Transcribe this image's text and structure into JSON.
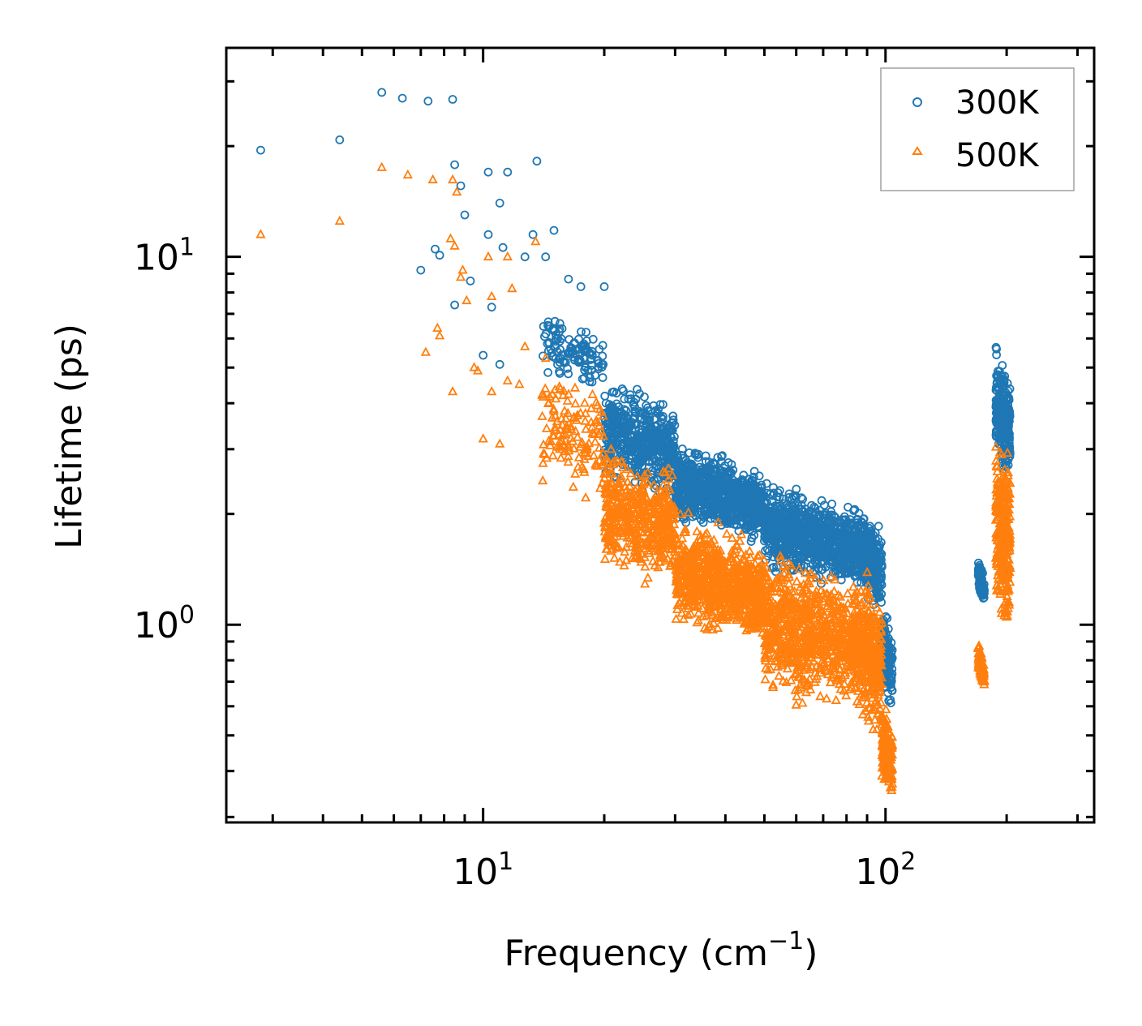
{
  "chart_data": {
    "type": "scatter",
    "title": "",
    "xlabel_main": "Frequency (cm",
    "xlabel_sup": "−1",
    "xlabel_close": ")",
    "ylabel": "Lifetime (ps)",
    "xscale": "log",
    "yscale": "log",
    "xlim": [
      2.3,
      330
    ],
    "ylim": [
      0.29,
      37
    ],
    "x_tick_labels": [
      {
        "value": 10,
        "base": "10",
        "exp": "1"
      },
      {
        "value": 100,
        "base": "10",
        "exp": "2"
      }
    ],
    "y_tick_labels": [
      {
        "value": 1,
        "base": "10",
        "exp": "0"
      },
      {
        "value": 10,
        "base": "10",
        "exp": "1"
      }
    ],
    "grid": false,
    "legend_position": "top-right",
    "series": [
      {
        "name": "300K",
        "marker": "circle",
        "color": "#1f77b4",
        "sample_points": [
          [
            2.8,
            19.5
          ],
          [
            5.6,
            28
          ],
          [
            6.3,
            27
          ],
          [
            7.3,
            26.5
          ],
          [
            8.4,
            26.8
          ],
          [
            4.4,
            20.8
          ],
          [
            13.6,
            18.2
          ],
          [
            8.5,
            17.8
          ],
          [
            10.3,
            17
          ],
          [
            11.5,
            17
          ],
          [
            8.8,
            15.6
          ],
          [
            9.0,
            13
          ],
          [
            11.0,
            14
          ],
          [
            13.3,
            11.5
          ],
          [
            15.0,
            11.8
          ],
          [
            10.3,
            11.5
          ],
          [
            11.2,
            10.6
          ],
          [
            7.6,
            10.5
          ],
          [
            7.8,
            10.1
          ],
          [
            7.0,
            9.2
          ],
          [
            9.3,
            8.6
          ],
          [
            10.5,
            7.3
          ],
          [
            12.7,
            10
          ],
          [
            14.3,
            10
          ],
          [
            16.3,
            8.7
          ],
          [
            17.5,
            8.3
          ],
          [
            20.0,
            8.3
          ],
          [
            10.0,
            5.4
          ],
          [
            11.0,
            5.1
          ],
          [
            8.5,
            7.4
          ]
        ],
        "clusters": [
          {
            "x_from": 14,
            "x_to": 20,
            "y_top": 7.5,
            "y_bottom": 4.2,
            "count": 120
          },
          {
            "x_from": 20,
            "x_to": 30,
            "y_top": 5.0,
            "y_bottom": 2.1,
            "count": 500
          },
          {
            "x_from": 30,
            "x_to": 50,
            "y_top": 3.3,
            "y_bottom": 1.6,
            "count": 800
          },
          {
            "x_from": 50,
            "x_to": 85,
            "y_top": 2.6,
            "y_bottom": 1.2,
            "count": 800
          },
          {
            "x_from": 85,
            "x_to": 98,
            "y_top": 2.3,
            "y_bottom": 1.05,
            "count": 300
          },
          {
            "x_from": 98,
            "x_to": 104,
            "y_top": 1.2,
            "y_bottom": 0.55,
            "count": 150
          },
          {
            "x_from": 170,
            "x_to": 176,
            "y_top": 1.6,
            "y_bottom": 1.1,
            "count": 90
          },
          {
            "x_from": 188,
            "x_to": 204,
            "y_top": 6.0,
            "y_bottom": 2.4,
            "count": 280
          }
        ]
      },
      {
        "name": "500K",
        "marker": "triangle",
        "color": "#ff7f0e",
        "sample_points": [
          [
            2.8,
            11.5
          ],
          [
            4.4,
            12.5
          ],
          [
            5.6,
            17.5
          ],
          [
            6.5,
            16.7
          ],
          [
            7.5,
            16.2
          ],
          [
            8.4,
            16.2
          ],
          [
            8.6,
            15
          ],
          [
            8.3,
            11.2
          ],
          [
            8.5,
            10.7
          ],
          [
            10.3,
            10
          ],
          [
            11.5,
            10
          ],
          [
            13.5,
            11
          ],
          [
            8.9,
            9.2
          ],
          [
            8.8,
            8.8
          ],
          [
            9.1,
            7.6
          ],
          [
            10.5,
            7.8
          ],
          [
            11.8,
            8.2
          ],
          [
            7.7,
            6.4
          ],
          [
            7.8,
            6.1
          ],
          [
            7.2,
            5.5
          ],
          [
            8.4,
            4.3
          ],
          [
            9.5,
            5.0
          ],
          [
            10.5,
            4.3
          ],
          [
            11.5,
            4.6
          ],
          [
            12.3,
            4.5
          ],
          [
            10.0,
            3.2
          ],
          [
            11.0,
            3.1
          ],
          [
            12.7,
            5.7
          ],
          [
            14.3,
            5.3
          ],
          [
            9.7,
            4.9
          ]
        ],
        "clusters": [
          {
            "x_from": 14,
            "x_to": 20,
            "y_top": 5.4,
            "y_bottom": 2.1,
            "count": 140
          },
          {
            "x_from": 20,
            "x_to": 30,
            "y_top": 3.3,
            "y_bottom": 1.2,
            "count": 500
          },
          {
            "x_from": 30,
            "x_to": 50,
            "y_top": 2.1,
            "y_bottom": 0.85,
            "count": 800
          },
          {
            "x_from": 50,
            "x_to": 85,
            "y_top": 1.7,
            "y_bottom": 0.55,
            "count": 800
          },
          {
            "x_from": 85,
            "x_to": 98,
            "y_top": 1.6,
            "y_bottom": 0.45,
            "count": 300
          },
          {
            "x_from": 98,
            "x_to": 104,
            "y_top": 0.65,
            "y_bottom": 0.32,
            "count": 170
          },
          {
            "x_from": 170,
            "x_to": 176,
            "y_top": 0.95,
            "y_bottom": 0.65,
            "count": 90
          },
          {
            "x_from": 188,
            "x_to": 204,
            "y_top": 3.8,
            "y_bottom": 0.88,
            "count": 280
          }
        ]
      }
    ]
  }
}
